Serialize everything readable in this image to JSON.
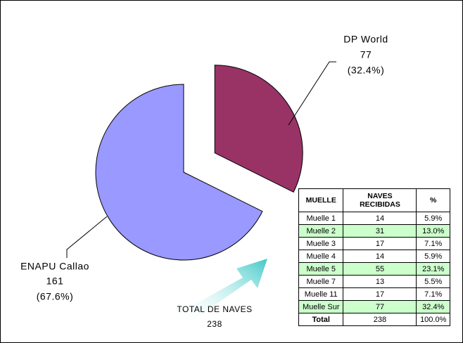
{
  "chart_data": {
    "type": "pie",
    "categories": [
      "DP World",
      "ENAPU Callao"
    ],
    "values": [
      77,
      161
    ],
    "percent_labels": [
      "(32.4%)",
      "(67.6%)"
    ],
    "colors": [
      "#993366",
      "#9999ff"
    ],
    "annotation": {
      "title": "TOTAL DE NAVES",
      "value": 238
    }
  },
  "table": {
    "header": [
      "MUELLE",
      "NAVES RECIBIDAS",
      "%"
    ],
    "rows": [
      [
        "Muelle 1",
        14,
        "5.9%"
      ],
      [
        "Muelle 2",
        31,
        "13.0%"
      ],
      [
        "Muelle 3",
        17,
        "7.1%"
      ],
      [
        "Muelle 4",
        14,
        "5.9%"
      ],
      [
        "Muelle 5",
        55,
        "23.1%"
      ],
      [
        "Muelle 7",
        13,
        "5.5%"
      ],
      [
        "Muelle 11",
        17,
        "7.1%"
      ],
      [
        "Muelle Sur",
        77,
        "32.4%"
      ]
    ],
    "row_fills": [
      "#ffffff",
      "#ccffcc",
      "#ffffff",
      "#ffffff",
      "#ccffcc",
      "#ffffff",
      "#ffffff",
      "#ccffcc"
    ],
    "total": [
      "Total",
      238,
      "100.0%"
    ]
  }
}
